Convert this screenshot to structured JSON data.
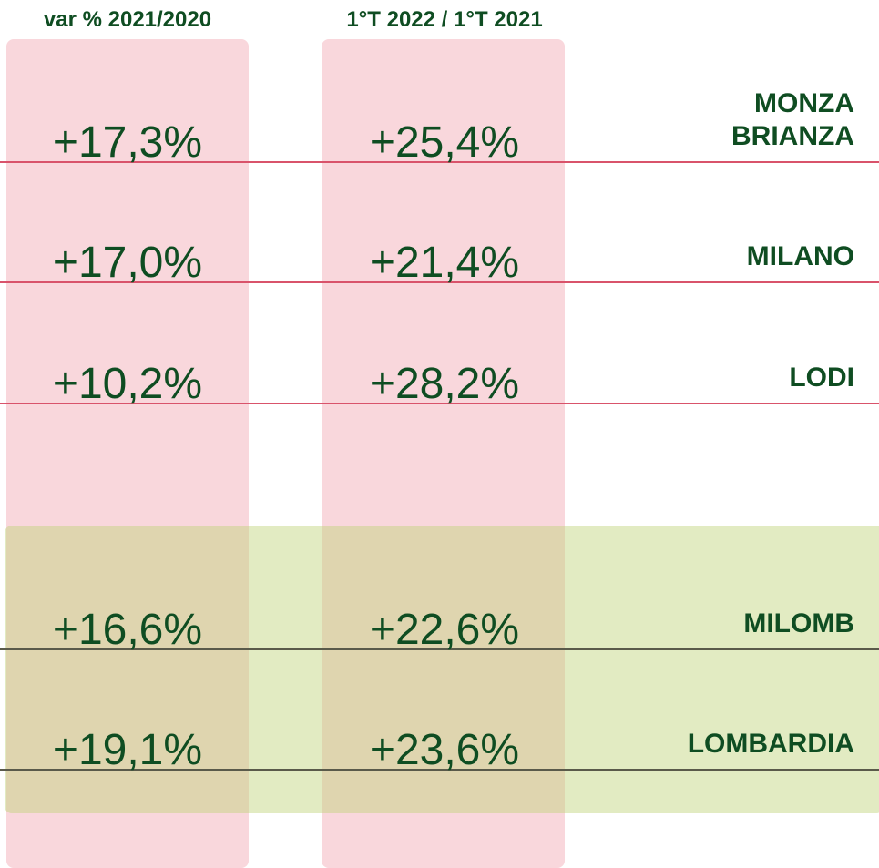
{
  "header": {
    "col1": "var % 2021/2020",
    "col2": "1°T 2022 / 1°T 2021"
  },
  "rows": [
    {
      "label": [
        "MONZA",
        "BRIANZA"
      ],
      "col1": "+17,3%",
      "col2": "+25,4%"
    },
    {
      "label": [
        "MILANO"
      ],
      "col1": "+17,0%",
      "col2": "+21,4%"
    },
    {
      "label": [
        "LODI"
      ],
      "col1": "+10,2%",
      "col2": "+28,2%"
    },
    {
      "label": [
        "MILOMB"
      ],
      "col1": "+16,6%",
      "col2": "+22,6%"
    },
    {
      "label": [
        "LOMBARDIA"
      ],
      "col1": "+19,1%",
      "col2": "+23,6%"
    }
  ]
}
